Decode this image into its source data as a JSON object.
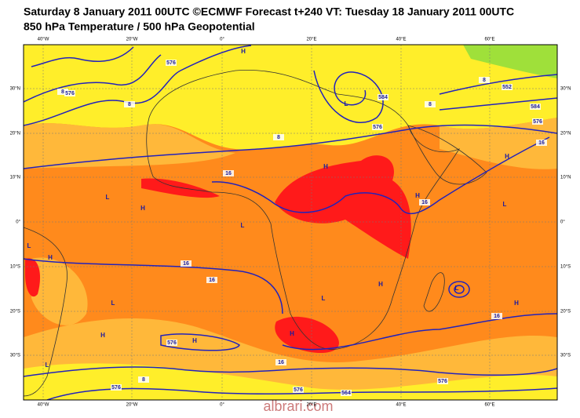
{
  "header": {
    "line1": "Saturday 8 January 2011 00UTC ©ECMWF Forecast t+240 VT: Tuesday 18 January 2011 00UTC",
    "line2": "850 hPa Temperature / 500 hPa Geopotential"
  },
  "map": {
    "lon_labels": [
      "40°W",
      "20°W",
      "0°",
      "20°E",
      "40°E",
      "60°E"
    ],
    "lat_labels": [
      "30°N",
      "20°N",
      "10°N",
      "0°",
      "10°S",
      "20°S",
      "30°S"
    ],
    "pressure_markers": [
      "H",
      "L",
      "H",
      "H",
      "L",
      "L",
      "L",
      "H",
      "H",
      "L",
      "H",
      "L",
      "H",
      "L",
      "L",
      "H",
      "H",
      "H",
      "L",
      "H"
    ],
    "contour_labels": [
      "576",
      "8",
      "576",
      "8",
      "8",
      "16",
      "16",
      "16",
      "16",
      "16",
      "16",
      "8",
      "576",
      "576",
      "564",
      "576",
      "8",
      "8",
      "552",
      "584",
      "576",
      "16",
      "576",
      "584",
      "576"
    ],
    "watermark": "albrari.com"
  }
}
